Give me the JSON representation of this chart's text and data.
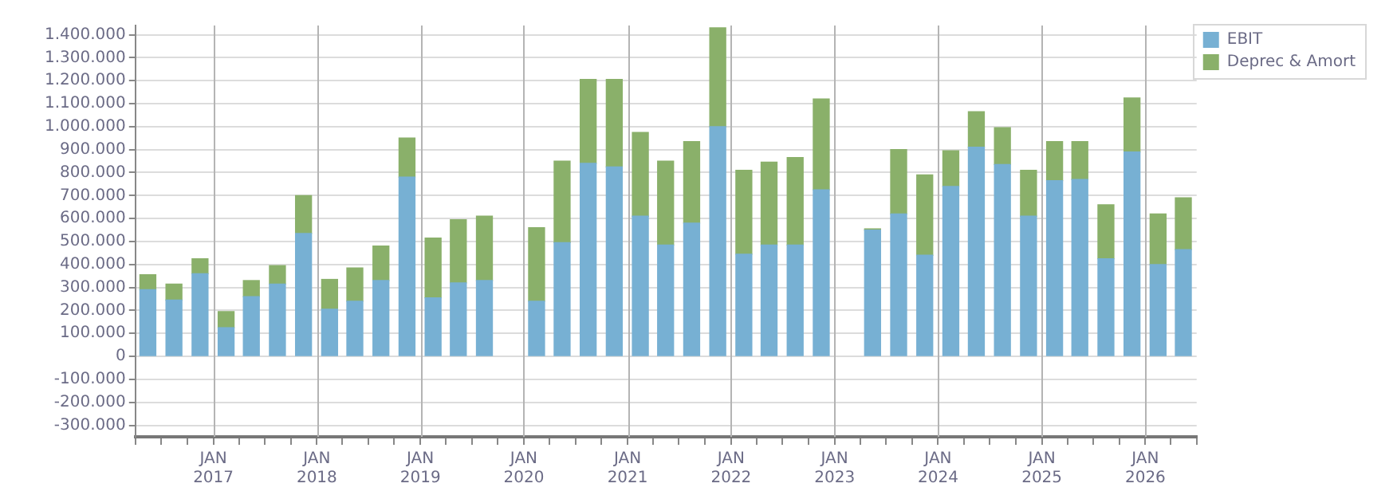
{
  "chart_data": {
    "type": "bar",
    "stacked": true,
    "x": [
      "2016-05-15",
      "2016-08-15",
      "2016-11-15",
      "2017-02-15",
      "2017-05-15",
      "2017-08-15",
      "2017-11-15",
      "2018-02-15",
      "2018-05-15",
      "2018-08-15",
      "2018-11-15",
      "2019-02-15",
      "2019-05-15",
      "2019-08-15",
      "2019-11-15",
      "2020-02-15",
      "2020-05-15",
      "2020-08-15",
      "2020-11-15",
      "2021-02-15",
      "2021-05-15",
      "2021-08-15",
      "2021-11-15",
      "2022-02-15",
      "2022-05-15",
      "2022-08-15",
      "2022-11-15",
      "2023-02-15",
      "2023-05-15",
      "2023-08-15",
      "2023-11-15",
      "2024-02-15",
      "2024-05-15",
      "2024-08-15",
      "2024-11-15",
      "2025-02-15",
      "2025-05-15",
      "2025-08-15",
      "2025-11-15",
      "2026-02-15",
      "2026-05-15"
    ],
    "series": [
      {
        "name": "EBIT",
        "color": "#77b0d3",
        "values": [
          290000,
          245000,
          360000,
          125000,
          260000,
          315000,
          535000,
          205000,
          240000,
          330000,
          780000,
          255000,
          320000,
          330000,
          null,
          240000,
          495000,
          840000,
          825000,
          610000,
          485000,
          580000,
          1000000,
          445000,
          485000,
          485000,
          725000,
          null,
          550000,
          620000,
          440000,
          740000,
          910000,
          835000,
          610000,
          765000,
          770000,
          425000,
          890000,
          400000,
          465000
        ]
      },
      {
        "name": "Deprec & Amort",
        "color": "#8ab06a",
        "values": [
          65000,
          70000,
          65000,
          70000,
          70000,
          80000,
          165000,
          130000,
          145000,
          150000,
          170000,
          260000,
          275000,
          280000,
          null,
          320000,
          355000,
          365000,
          380000,
          365000,
          365000,
          355000,
          430000,
          365000,
          360000,
          380000,
          395000,
          null,
          5000,
          280000,
          350000,
          155000,
          155000,
          160000,
          200000,
          170000,
          165000,
          235000,
          235000,
          220000,
          225000
        ]
      }
    ],
    "xlim": [
      "2016-04",
      "2026-07"
    ],
    "xticks": [
      {
        "value": "2016-04",
        "label": null
      },
      {
        "value": "2016-07",
        "label": null
      },
      {
        "value": "2016-10",
        "label": null
      },
      {
        "value": "2017-01",
        "label": "JAN 2017"
      },
      {
        "value": "2017-04",
        "label": null
      },
      {
        "value": "2017-07",
        "label": null
      },
      {
        "value": "2017-10",
        "label": null
      },
      {
        "value": "2018-01",
        "label": "JAN 2018"
      },
      {
        "value": "2018-04",
        "label": null
      },
      {
        "value": "2018-07",
        "label": null
      },
      {
        "value": "2018-10",
        "label": null
      },
      {
        "value": "2019-01",
        "label": "JAN 2019"
      },
      {
        "value": "2019-04",
        "label": null
      },
      {
        "value": "2019-07",
        "label": null
      },
      {
        "value": "2019-10",
        "label": null
      },
      {
        "value": "2020-01",
        "label": "JAN 2020"
      },
      {
        "value": "2020-04",
        "label": null
      },
      {
        "value": "2020-07",
        "label": null
      },
      {
        "value": "2020-10",
        "label": null
      },
      {
        "value": "2021-01",
        "label": "JAN 2021"
      },
      {
        "value": "2021-04",
        "label": null
      },
      {
        "value": "2021-07",
        "label": null
      },
      {
        "value": "2021-10",
        "label": null
      },
      {
        "value": "2022-01",
        "label": "JAN 2022"
      },
      {
        "value": "2022-04",
        "label": null
      },
      {
        "value": "2022-07",
        "label": null
      },
      {
        "value": "2022-10",
        "label": null
      },
      {
        "value": "2023-01",
        "label": "JAN 2023"
      },
      {
        "value": "2023-04",
        "label": null
      },
      {
        "value": "2023-07",
        "label": null
      },
      {
        "value": "2023-10",
        "label": null
      },
      {
        "value": "2024-01",
        "label": "JAN 2024"
      },
      {
        "value": "2024-04",
        "label": null
      },
      {
        "value": "2024-07",
        "label": null
      },
      {
        "value": "2024-10",
        "label": null
      },
      {
        "value": "2025-01",
        "label": "JAN 2025"
      },
      {
        "value": "2025-04",
        "label": null
      },
      {
        "value": "2025-07",
        "label": null
      },
      {
        "value": "2025-10",
        "label": null
      },
      {
        "value": "2026-01",
        "label": "JAN 2026"
      },
      {
        "value": "2026-04",
        "label": null
      },
      {
        "value": "2026-07",
        "label": null
      }
    ],
    "ylim": [
      -350000,
      1440000
    ],
    "yticks": [
      {
        "value": -300000,
        "label": "-300.000"
      },
      {
        "value": -200000,
        "label": "-200.000"
      },
      {
        "value": -100000,
        "label": "-100.000"
      },
      {
        "value": 0,
        "label": "0"
      },
      {
        "value": 100000,
        "label": "100.000"
      },
      {
        "value": 200000,
        "label": "200.000"
      },
      {
        "value": 300000,
        "label": "300.000"
      },
      {
        "value": 400000,
        "label": "400.000"
      },
      {
        "value": 500000,
        "label": "500.000"
      },
      {
        "value": 600000,
        "label": "600.000"
      },
      {
        "value": 700000,
        "label": "700.000"
      },
      {
        "value": 800000,
        "label": "800.000"
      },
      {
        "value": 900000,
        "label": "900.000"
      },
      {
        "value": 1000000,
        "label": "1.000.000"
      },
      {
        "value": 1100000,
        "label": "1.100.000"
      },
      {
        "value": 1200000,
        "label": "1.200.000"
      },
      {
        "value": 1300000,
        "label": "1.300.000"
      },
      {
        "value": 1400000,
        "label": "1.400.000"
      }
    ],
    "grid": true,
    "legend": "top right"
  }
}
